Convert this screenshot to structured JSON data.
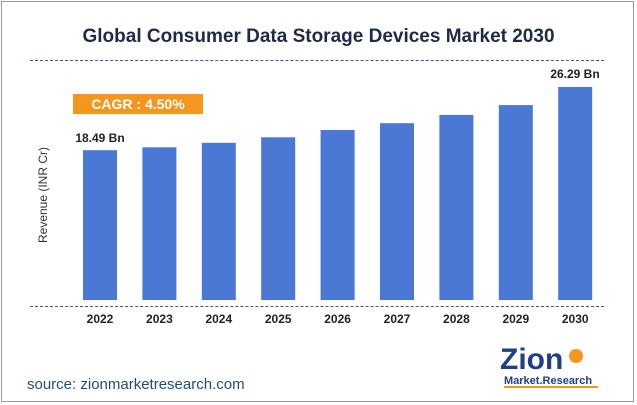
{
  "chart_data": {
    "type": "bar",
    "title": "Global Consumer Data Storage Devices Market 2030",
    "categories": [
      "2022",
      "2023",
      "2024",
      "2025",
      "2026",
      "2027",
      "2028",
      "2029",
      "2030"
    ],
    "values": [
      18.49,
      18.85,
      19.4,
      20.08,
      20.98,
      21.82,
      22.85,
      24.05,
      26.29
    ],
    "ylabel": "Revenue (INR Cr)",
    "xlabel": "",
    "ylim": [
      0,
      26.29
    ],
    "annotations": {
      "first_value_label": "18.49 Bn",
      "last_value_label": "26.29 Bn",
      "cagr": "CAGR : 4.50%"
    },
    "bar_color": "#4a78d4"
  },
  "source": "source: zionmarketresearch.com",
  "logo": {
    "brand": "Zion",
    "tagline": "Market.Research"
  }
}
